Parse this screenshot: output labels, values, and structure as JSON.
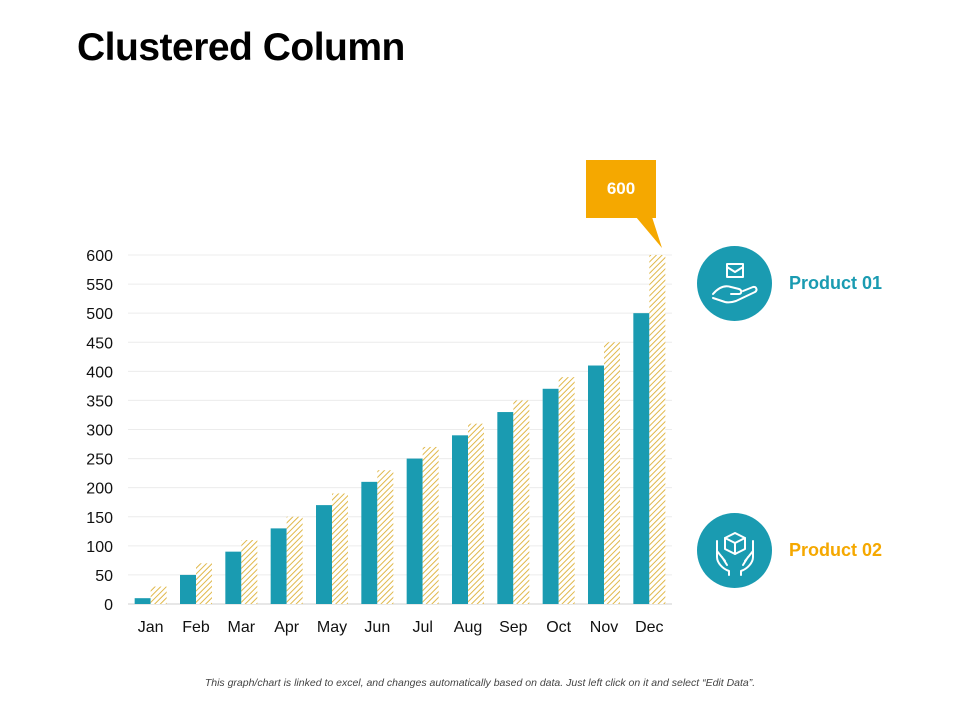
{
  "page": {
    "title": "Clustered Column",
    "footnote": "This graph/chart is linked to excel, and changes automatically based on data. Just left click on it and select “Edit Data”."
  },
  "callout": {
    "label": "600"
  },
  "legend": {
    "items": [
      {
        "label": "Product 01",
        "icon": "hand-with-box-icon",
        "color": "#1a9bb1"
      },
      {
        "label": "Product 02",
        "icon": "hands-with-box-icon",
        "color": "#f5a800"
      }
    ]
  },
  "colors": {
    "product01": "#1a9bb1",
    "product02": "#e0b84a",
    "accent": "#f5a800",
    "grid": "#ececec"
  },
  "chart_data": {
    "type": "bar",
    "title": "Clustered Column",
    "xlabel": "",
    "ylabel": "",
    "categories": [
      "Jan",
      "Feb",
      "Mar",
      "Apr",
      "May",
      "Jun",
      "Jul",
      "Aug",
      "Sep",
      "Oct",
      "Nov",
      "Dec"
    ],
    "series": [
      {
        "name": "Product 01",
        "values": [
          10,
          50,
          90,
          130,
          170,
          210,
          250,
          290,
          330,
          370,
          410,
          500
        ]
      },
      {
        "name": "Product 02",
        "values": [
          30,
          70,
          110,
          150,
          190,
          230,
          270,
          310,
          350,
          390,
          450,
          600
        ]
      }
    ],
    "ylim": [
      0,
      600
    ],
    "yticks": [
      0,
      50,
      100,
      150,
      200,
      250,
      300,
      350,
      400,
      450,
      500,
      550,
      600
    ],
    "grid": true,
    "legend_position": "right"
  }
}
